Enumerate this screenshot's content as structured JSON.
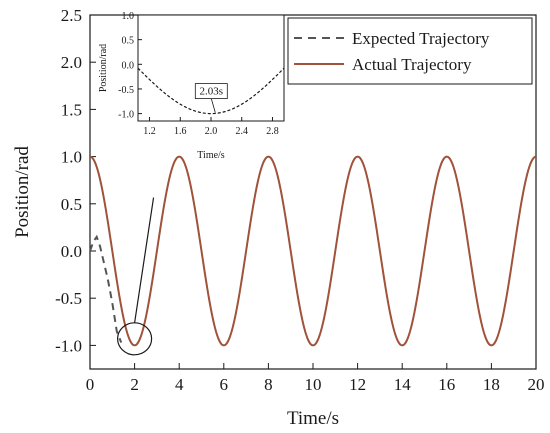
{
  "colors": {
    "expected": "#555555",
    "actual": "#a0523a",
    "axis": "#1a1a1a"
  },
  "chart_data": [
    {
      "type": "line",
      "xlabel": "Time/s",
      "ylabel": "Position/rad",
      "xlim": [
        0,
        20
      ],
      "ylim": [
        -1.25,
        2.5
      ],
      "x_ticks": [
        0,
        2,
        4,
        6,
        8,
        10,
        12,
        14,
        16,
        18,
        20
      ],
      "x_tick_labels": [
        "0",
        "2",
        "4",
        "6",
        "8",
        "10",
        "12",
        "14",
        "16",
        "18",
        "20"
      ],
      "y_ticks": [
        -1.0,
        -0.5,
        0.0,
        0.5,
        1.0,
        1.5,
        2.0,
        2.5
      ],
      "y_tick_labels": [
        "-1.0",
        "-0.5",
        "0.0",
        "0.5",
        "1.0",
        "1.5",
        "2.0",
        "2.5"
      ],
      "grid": false,
      "legend_position": "top-right",
      "series": [
        {
          "name": "Expected Trajectory",
          "style": "dashed",
          "x": [
            0.0,
            0.15,
            0.3,
            0.45,
            0.6,
            0.8,
            1.0,
            1.2,
            1.4
          ],
          "y": [
            0.0,
            0.1,
            0.15,
            0.05,
            -0.1,
            -0.3,
            -0.55,
            -0.85,
            -0.97
          ]
        },
        {
          "name": "Actual Trajectory",
          "style": "solid",
          "function": "cos(pi*t/2)",
          "x_range": [
            0,
            20
          ],
          "samples": 401
        }
      ],
      "annotations": [
        {
          "type": "ellipse",
          "x": 2.0,
          "y": -0.93
        },
        {
          "type": "connector",
          "from": [
            2.0,
            -0.93
          ],
          "to": [
            2.85,
            0.1
          ]
        }
      ]
    },
    {
      "type": "line",
      "inset": true,
      "xlabel": "Time/s",
      "ylabel": "Position/rad",
      "xlim": [
        1.05,
        2.95
      ],
      "ylim": [
        -1.15,
        1.0
      ],
      "x_ticks": [
        1.2,
        1.6,
        2.0,
        2.4,
        2.8
      ],
      "x_tick_labels": [
        "1.2",
        "1.6",
        "2.0",
        "2.4",
        "2.8"
      ],
      "y_ticks": [
        -1.0,
        -0.5,
        0.0,
        0.5,
        1.0
      ],
      "y_tick_labels": [
        "-1.0",
        "-0.5",
        "0.0",
        "0.5",
        "1.0"
      ],
      "series": [
        {
          "name": "Expected Trajectory",
          "style": "dashed",
          "function": "cos(pi*t/2)",
          "x_range": [
            1.05,
            2.95
          ],
          "samples": 80
        }
      ],
      "annotations": [
        {
          "type": "label",
          "text": "2.03s",
          "x": 2.03,
          "y": -1.0
        }
      ]
    }
  ],
  "legend": {
    "items": [
      {
        "label": "Expected Trajectory"
      },
      {
        "label": "Actual Trajectory"
      }
    ]
  }
}
